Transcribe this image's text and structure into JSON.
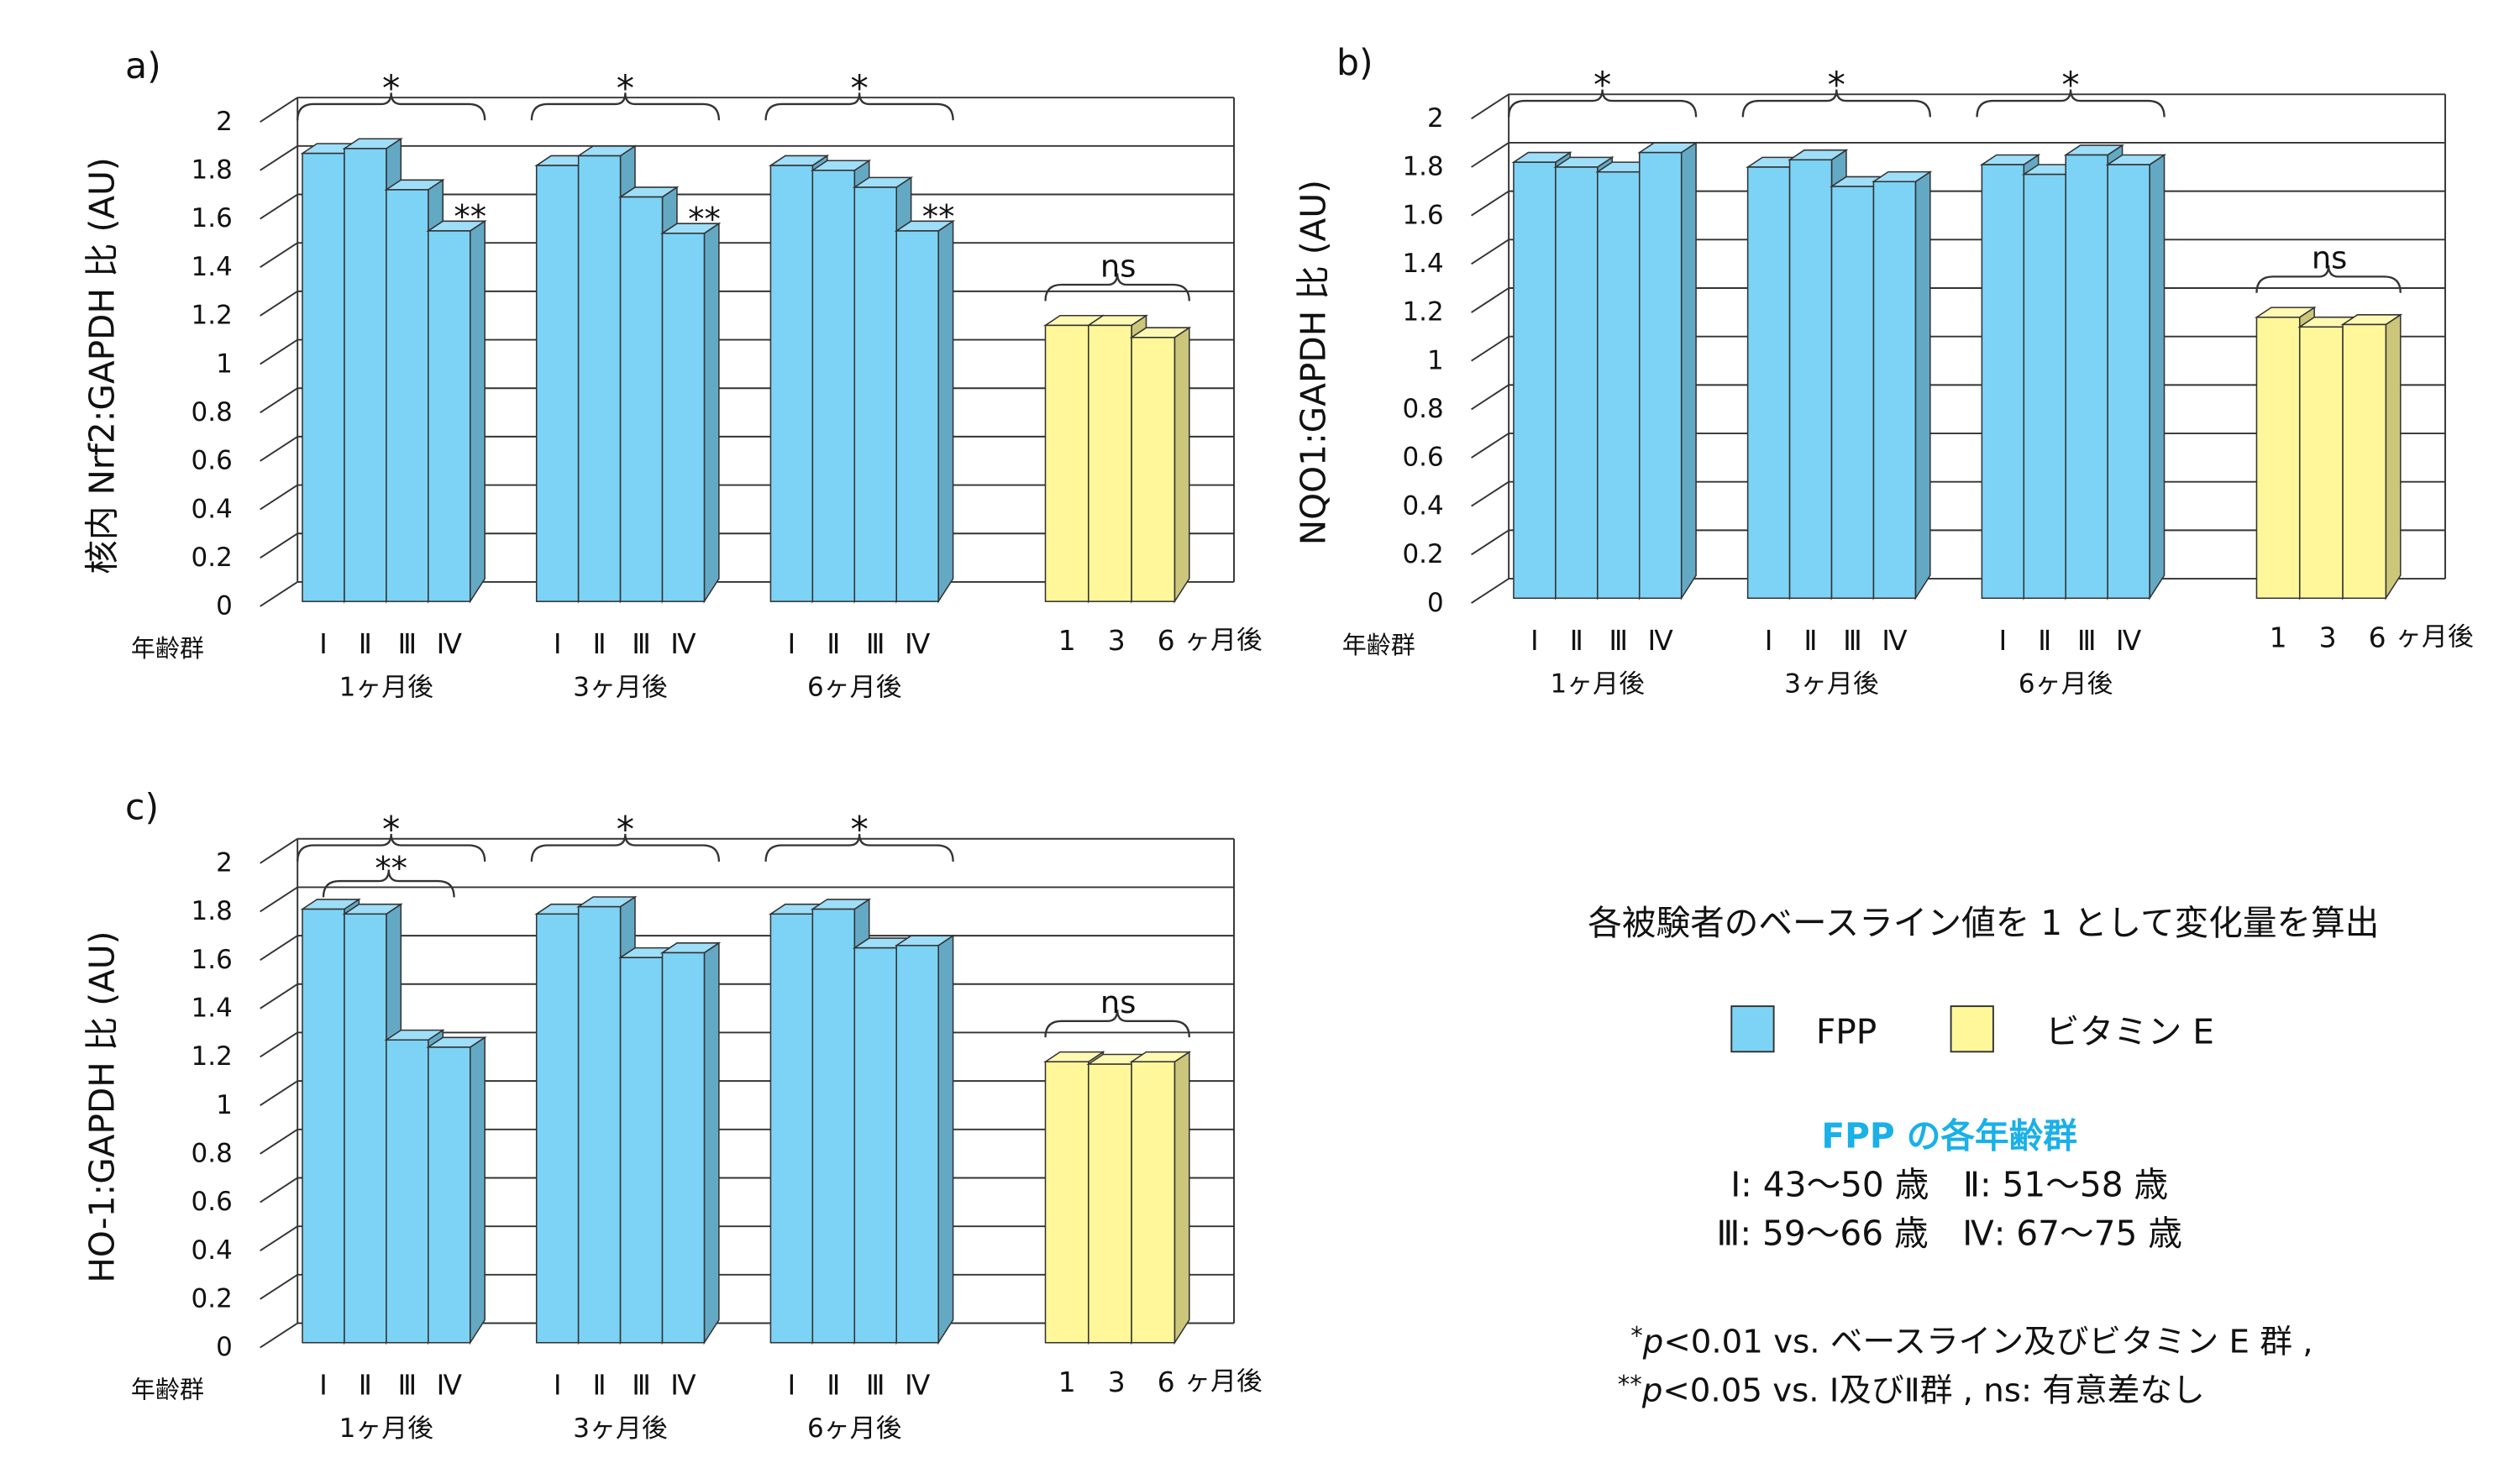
{
  "colors": {
    "fpp": "#7dd3f5",
    "vitamin_e": "#fff79a",
    "accent_text": "#1ab0e8",
    "grid": "#333333"
  },
  "chart_data": [
    {
      "type": "bar",
      "panel_label": "a)",
      "ylabel": "核内 Nrf2:GAPDH 比 (AU)",
      "ylim": [
        0,
        2
      ],
      "yticks": [
        "0",
        "0.2",
        "0.4",
        "0.6",
        "0.8",
        "1",
        "1.2",
        "1.4",
        "1.6",
        "1.8",
        "2"
      ],
      "grid": true,
      "age_group_label": "年齢群",
      "groups": [
        {
          "label": "1ヶ月後",
          "categories": [
            "Ⅰ",
            "Ⅱ",
            "Ⅲ",
            "Ⅳ"
          ],
          "values": [
            1.85,
            1.87,
            1.7,
            1.53
          ],
          "sig": "*",
          "bar_sig": "**"
        },
        {
          "label": "3ヶ月後",
          "categories": [
            "Ⅰ",
            "Ⅱ",
            "Ⅲ",
            "Ⅳ"
          ],
          "values": [
            1.8,
            1.84,
            1.67,
            1.52
          ],
          "sig": "*",
          "bar_sig": "**"
        },
        {
          "label": "6ヶ月後",
          "categories": [
            "Ⅰ",
            "Ⅱ",
            "Ⅲ",
            "Ⅳ"
          ],
          "values": [
            1.8,
            1.78,
            1.71,
            1.53
          ],
          "sig": "*",
          "bar_sig": "**"
        }
      ],
      "vitamin_e": {
        "categories": [
          "1",
          "3",
          "6"
        ],
        "suffix": "ヶ月後",
        "values": [
          1.14,
          1.14,
          1.09
        ],
        "sig": "ns"
      }
    },
    {
      "type": "bar",
      "panel_label": "b)",
      "ylabel": "NQO1:GAPDH 比 (AU)",
      "ylim": [
        0,
        2
      ],
      "yticks": [
        "0",
        "0.2",
        "0.4",
        "0.6",
        "0.8",
        "1",
        "1.2",
        "1.4",
        "1.6",
        "1.8",
        "2"
      ],
      "grid": true,
      "age_group_label": "年齢群",
      "groups": [
        {
          "label": "1ヶ月後",
          "categories": [
            "Ⅰ",
            "Ⅱ",
            "Ⅲ",
            "Ⅳ"
          ],
          "values": [
            1.8,
            1.78,
            1.76,
            1.84
          ],
          "sig": "*"
        },
        {
          "label": "3ヶ月後",
          "categories": [
            "Ⅰ",
            "Ⅱ",
            "Ⅲ",
            "Ⅳ"
          ],
          "values": [
            1.78,
            1.81,
            1.7,
            1.72
          ],
          "sig": "*"
        },
        {
          "label": "6ヶ月後",
          "categories": [
            "Ⅰ",
            "Ⅱ",
            "Ⅲ",
            "Ⅳ"
          ],
          "values": [
            1.79,
            1.75,
            1.83,
            1.79
          ],
          "sig": "*"
        }
      ],
      "vitamin_e": {
        "categories": [
          "1",
          "3",
          "6"
        ],
        "suffix": "ヶ月後",
        "values": [
          1.16,
          1.12,
          1.13
        ],
        "sig": "ns"
      }
    },
    {
      "type": "bar",
      "panel_label": "c)",
      "ylabel": "HO-1:GAPDH 比 (AU)",
      "ylim": [
        0,
        2
      ],
      "yticks": [
        "0",
        "0.2",
        "0.4",
        "0.6",
        "0.8",
        "1",
        "1.2",
        "1.4",
        "1.6",
        "1.8",
        "2"
      ],
      "grid": true,
      "age_group_label": "年齢群",
      "groups": [
        {
          "label": "1ヶ月後",
          "categories": [
            "Ⅰ",
            "Ⅱ",
            "Ⅲ",
            "Ⅳ"
          ],
          "values": [
            1.79,
            1.77,
            1.25,
            1.22
          ],
          "sig": "*",
          "pair_sig": "**"
        },
        {
          "label": "3ヶ月後",
          "categories": [
            "Ⅰ",
            "Ⅱ",
            "Ⅲ",
            "Ⅳ"
          ],
          "values": [
            1.77,
            1.8,
            1.59,
            1.61
          ],
          "sig": "*"
        },
        {
          "label": "6ヶ月後",
          "categories": [
            "Ⅰ",
            "Ⅱ",
            "Ⅲ",
            "Ⅳ"
          ],
          "values": [
            1.77,
            1.79,
            1.63,
            1.64
          ],
          "sig": "*"
        }
      ],
      "vitamin_e": {
        "categories": [
          "1",
          "3",
          "6"
        ],
        "suffix": "ヶ月後",
        "values": [
          1.16,
          1.15,
          1.16
        ],
        "sig": "ns"
      }
    }
  ],
  "notes": {
    "baseline_note": "各被験者のベースライン値を 1 として変化量を算出",
    "legend": [
      {
        "label": "FPP",
        "color": "#7dd3f5"
      },
      {
        "label": "ビタミン E",
        "color": "#fff79a"
      }
    ],
    "age_groups_title": "FPP の各年齢群",
    "age_groups_line1": "Ⅰ: 43〜50 歳　Ⅱ: 51〜58 歳",
    "age_groups_line2": "Ⅲ: 59〜66 歳　Ⅳ: 67〜75 歳",
    "footnote1_star": "*",
    "footnote1_p": "p",
    "footnote1_text": "<0.01 vs. ベースライン及びビタミン E 群 ,",
    "footnote2_star": "**",
    "footnote2_p": "p",
    "footnote2_text": "<0.05 vs. Ⅰ及びⅡ群 ,  ns: 有意差なし"
  }
}
